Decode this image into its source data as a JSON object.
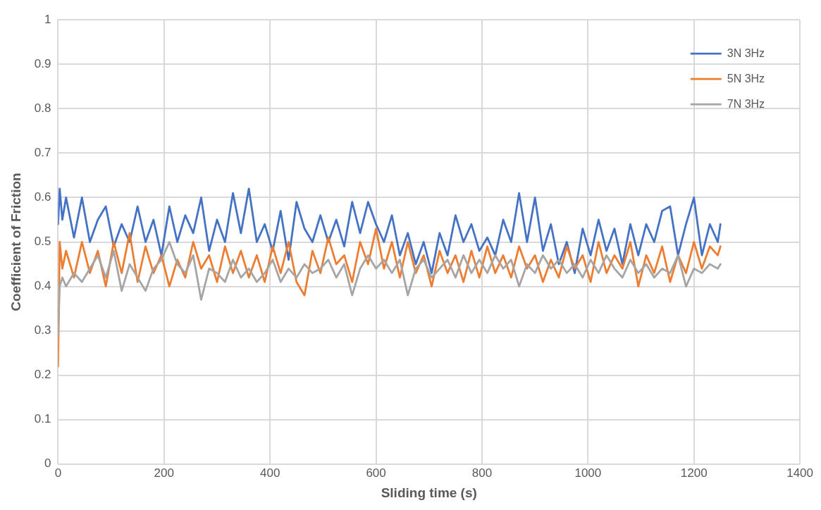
{
  "chart_data": {
    "type": "line",
    "xlabel": "Sliding time (s)",
    "ylabel": "Coefficient of Friction",
    "x": [
      0,
      3,
      8,
      15,
      30,
      45,
      60,
      75,
      90,
      105,
      120,
      135,
      150,
      165,
      180,
      195,
      210,
      225,
      240,
      255,
      270,
      285,
      300,
      315,
      330,
      345,
      360,
      375,
      390,
      405,
      420,
      435,
      450,
      465,
      480,
      495,
      510,
      525,
      540,
      555,
      570,
      585,
      600,
      615,
      630,
      645,
      660,
      675,
      690,
      705,
      720,
      735,
      750,
      765,
      780,
      795,
      810,
      825,
      840,
      855,
      870,
      885,
      900,
      915,
      930,
      945,
      960,
      975,
      990,
      1005,
      1020,
      1035,
      1050,
      1065,
      1080,
      1095,
      1110,
      1125,
      1140,
      1155,
      1170,
      1185,
      1200,
      1215,
      1230,
      1245,
      1250
    ],
    "series": [
      {
        "name": "3N 3Hz",
        "color": "#4472c4",
        "values": [
          0.54,
          0.62,
          0.55,
          0.6,
          0.51,
          0.6,
          0.5,
          0.55,
          0.58,
          0.49,
          0.54,
          0.5,
          0.58,
          0.5,
          0.55,
          0.47,
          0.58,
          0.5,
          0.56,
          0.52,
          0.6,
          0.48,
          0.55,
          0.5,
          0.61,
          0.52,
          0.62,
          0.5,
          0.54,
          0.48,
          0.57,
          0.46,
          0.59,
          0.53,
          0.5,
          0.56,
          0.5,
          0.55,
          0.49,
          0.59,
          0.52,
          0.59,
          0.54,
          0.5,
          0.56,
          0.47,
          0.52,
          0.45,
          0.5,
          0.43,
          0.52,
          0.47,
          0.56,
          0.5,
          0.54,
          0.48,
          0.51,
          0.47,
          0.55,
          0.5,
          0.61,
          0.5,
          0.6,
          0.48,
          0.54,
          0.45,
          0.5,
          0.43,
          0.53,
          0.47,
          0.55,
          0.48,
          0.53,
          0.45,
          0.54,
          0.47,
          0.54,
          0.5,
          0.57,
          0.58,
          0.47,
          0.54,
          0.6,
          0.47,
          0.54,
          0.5,
          0.54
        ]
      },
      {
        "name": "5N 3Hz",
        "color": "#ed7d31",
        "values": [
          0.22,
          0.5,
          0.44,
          0.48,
          0.42,
          0.5,
          0.43,
          0.48,
          0.4,
          0.5,
          0.43,
          0.52,
          0.41,
          0.49,
          0.43,
          0.47,
          0.4,
          0.46,
          0.42,
          0.5,
          0.44,
          0.47,
          0.41,
          0.49,
          0.43,
          0.48,
          0.42,
          0.47,
          0.41,
          0.49,
          0.43,
          0.5,
          0.41,
          0.38,
          0.48,
          0.43,
          0.51,
          0.45,
          0.47,
          0.41,
          0.5,
          0.45,
          0.53,
          0.44,
          0.5,
          0.42,
          0.5,
          0.43,
          0.47,
          0.4,
          0.48,
          0.43,
          0.47,
          0.41,
          0.48,
          0.42,
          0.49,
          0.43,
          0.47,
          0.42,
          0.49,
          0.44,
          0.47,
          0.41,
          0.46,
          0.42,
          0.49,
          0.44,
          0.47,
          0.41,
          0.5,
          0.43,
          0.47,
          0.44,
          0.5,
          0.4,
          0.47,
          0.43,
          0.49,
          0.41,
          0.47,
          0.43,
          0.5,
          0.44,
          0.49,
          0.47,
          0.49
        ]
      },
      {
        "name": "7N 3Hz",
        "color": "#a5a5a5",
        "values": [
          0.29,
          0.4,
          0.42,
          0.4,
          0.43,
          0.41,
          0.44,
          0.47,
          0.42,
          0.48,
          0.39,
          0.45,
          0.42,
          0.39,
          0.44,
          0.46,
          0.5,
          0.45,
          0.43,
          0.47,
          0.37,
          0.44,
          0.43,
          0.41,
          0.46,
          0.42,
          0.44,
          0.41,
          0.43,
          0.46,
          0.41,
          0.44,
          0.42,
          0.45,
          0.43,
          0.44,
          0.46,
          0.42,
          0.45,
          0.38,
          0.44,
          0.47,
          0.44,
          0.46,
          0.43,
          0.46,
          0.38,
          0.44,
          0.46,
          0.42,
          0.44,
          0.46,
          0.42,
          0.47,
          0.43,
          0.46,
          0.43,
          0.47,
          0.44,
          0.46,
          0.4,
          0.45,
          0.43,
          0.47,
          0.44,
          0.46,
          0.43,
          0.45,
          0.42,
          0.46,
          0.43,
          0.47,
          0.44,
          0.42,
          0.46,
          0.43,
          0.45,
          0.42,
          0.44,
          0.43,
          0.47,
          0.4,
          0.44,
          0.43,
          0.45,
          0.44,
          0.45
        ]
      }
    ],
    "xlim": [
      0,
      1400
    ],
    "xticks": [
      0,
      200,
      400,
      600,
      800,
      1000,
      1200,
      1400
    ],
    "ylim": [
      0,
      1
    ],
    "yticks": [
      0,
      0.1,
      0.2,
      0.3,
      0.4,
      0.5,
      0.6,
      0.7,
      0.8,
      0.9,
      1
    ],
    "grid": true,
    "legend": "top right",
    "marker": "none",
    "line_style": "solid"
  }
}
